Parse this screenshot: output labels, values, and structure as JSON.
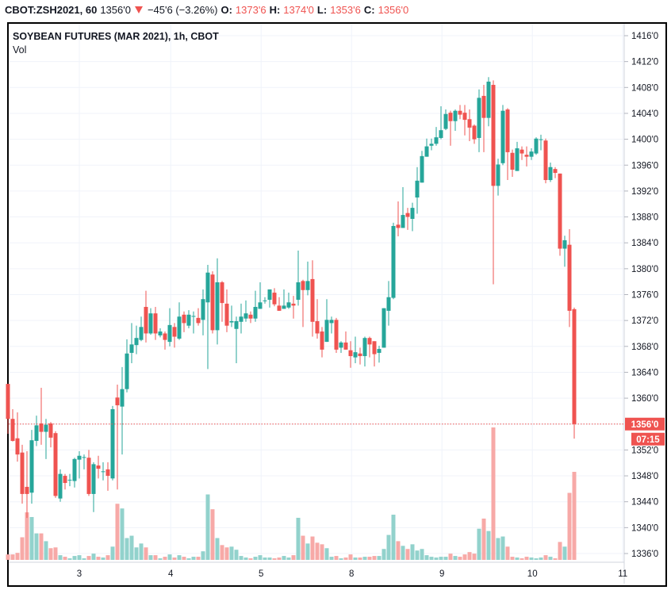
{
  "header": {
    "symbol": "CBOT:ZSH2021, 60",
    "last": "1356'0",
    "change": "−45'6 (−3.26%)",
    "open_label": "O:",
    "open": "1373'6",
    "high_label": "H:",
    "high": "1374'0",
    "low_label": "L:",
    "low": "1353'6",
    "close_label": "C:",
    "close": "1356'0",
    "direction_icon": "triangle-down-icon"
  },
  "legend": {
    "title": "SOYBEAN FUTURES (MAR 2021), 1h, CBOT",
    "volume_label": "Vol"
  },
  "price_label": "1356'0",
  "countdown": "07:15",
  "colors": {
    "up": "#26a69a",
    "down": "#ef5350",
    "up_vol": "#92d2cc",
    "down_vol": "#f7a9a7",
    "grid": "#f0f3fa"
  },
  "chart_data": {
    "type": "candlestick",
    "title": "SOYBEAN FUTURES (MAR 2021), 1h, CBOT",
    "ylim": [
      1334,
      1418
    ],
    "y_ticks": [
      "1416'0",
      "1412'0",
      "1408'0",
      "1404'0",
      "1400'0",
      "1396'0",
      "1392'0",
      "1388'0",
      "1384'0",
      "1380'0",
      "1376'0",
      "1372'0",
      "1368'0",
      "1364'0",
      "1360'0",
      "1352'0",
      "1348'0",
      "1344'0",
      "1340'0",
      "1336'0"
    ],
    "y_tick_values": [
      1416,
      1412,
      1408,
      1404,
      1400,
      1396,
      1392,
      1388,
      1384,
      1380,
      1376,
      1372,
      1368,
      1364,
      1360,
      1352,
      1348,
      1344,
      1340,
      1336
    ],
    "x_ticks": [
      {
        "label": "3",
        "bar": 15
      },
      {
        "label": "4",
        "bar": 34.2
      },
      {
        "label": "5",
        "bar": 53.2
      },
      {
        "label": "8",
        "bar": 72.2
      },
      {
        "label": "9",
        "bar": 91.2
      },
      {
        "label": "10",
        "bar": 110.2
      },
      {
        "label": "11",
        "bar": 129.2
      }
    ],
    "last_price": 1356,
    "ohlc_fields": [
      "open",
      "high",
      "low",
      "close"
    ],
    "ohlc": [
      [
        1362.2,
        1362.2,
        1354.5,
        1356.8
      ],
      [
        1356.8,
        1358.3,
        1353.3,
        1353.4
      ],
      [
        1353.8,
        1357.8,
        1350.2,
        1351.3
      ],
      [
        1351.6,
        1352.8,
        1343.7,
        1345.2
      ],
      [
        1346.3,
        1351.8,
        1341.5,
        1345.2
      ],
      [
        1345.4,
        1355.1,
        1343.7,
        1353.5
      ],
      [
        1353.4,
        1357.3,
        1352.6,
        1355.8
      ],
      [
        1356.1,
        1361.6,
        1352.8,
        1354.8
      ],
      [
        1354.8,
        1356.8,
        1350.6,
        1355.9
      ],
      [
        1356.1,
        1356.3,
        1352.4,
        1353.9
      ],
      [
        1354.6,
        1354.9,
        1344.6,
        1344.9
      ],
      [
        1344.5,
        1349.0,
        1344.0,
        1348.3
      ],
      [
        1348.0,
        1348.3,
        1345.9,
        1346.9
      ],
      [
        1347.3,
        1348.3,
        1346.4,
        1347.4
      ],
      [
        1347.2,
        1350.8,
        1346.2,
        1350.6
      ],
      [
        1350.5,
        1351.8,
        1347.6,
        1351.1
      ],
      [
        1350.8,
        1351.3,
        1349.0,
        1350.9
      ],
      [
        1350.8,
        1352.0,
        1344.9,
        1345.2
      ],
      [
        1345.2,
        1350.1,
        1342.4,
        1349.8
      ],
      [
        1349.6,
        1351.1,
        1347.6,
        1349.1
      ],
      [
        1348.6,
        1350.1,
        1347.3,
        1348.7
      ],
      [
        1349.0,
        1350.1,
        1345.7,
        1348.0
      ],
      [
        1347.6,
        1358.8,
        1347.3,
        1358.3
      ],
      [
        1360.1,
        1362.1,
        1345.9,
        1358.9
      ],
      [
        1358.7,
        1364.8,
        1351.3,
        1361.4
      ],
      [
        1361.4,
        1369.1,
        1360.9,
        1366.9
      ],
      [
        1367.0,
        1371.6,
        1365.4,
        1368.3
      ],
      [
        1368.2,
        1371.2,
        1366.8,
        1369.3
      ],
      [
        1369.0,
        1372.6,
        1368.8,
        1371.0
      ],
      [
        1374.1,
        1376.6,
        1368.6,
        1370.0
      ],
      [
        1370.0,
        1373.9,
        1369.8,
        1373.1
      ],
      [
        1373.1,
        1374.1,
        1369.0,
        1370.0
      ],
      [
        1369.7,
        1370.8,
        1369.4,
        1370.3
      ],
      [
        1370.0,
        1370.3,
        1367.5,
        1369.0
      ],
      [
        1368.7,
        1373.9,
        1368.0,
        1371.3
      ],
      [
        1371.0,
        1371.6,
        1367.8,
        1369.5
      ],
      [
        1369.2,
        1374.8,
        1369.0,
        1372.6
      ],
      [
        1372.9,
        1373.4,
        1370.2,
        1371.6
      ],
      [
        1371.2,
        1373.6,
        1370.8,
        1372.9
      ],
      [
        1372.6,
        1373.4,
        1370.0,
        1372.7
      ],
      [
        1372.4,
        1373.9,
        1371.2,
        1371.6
      ],
      [
        1372.1,
        1376.8,
        1369.7,
        1375.3
      ],
      [
        1374.8,
        1380.6,
        1364.5,
        1379.4
      ],
      [
        1379.1,
        1379.6,
        1370.0,
        1370.5
      ],
      [
        1370.5,
        1381.6,
        1368.3,
        1377.9
      ],
      [
        1377.9,
        1378.1,
        1371.8,
        1374.7
      ],
      [
        1374.6,
        1376.8,
        1370.2,
        1371.2
      ],
      [
        1371.7,
        1374.3,
        1371.0,
        1371.9
      ],
      [
        1370.7,
        1372.6,
        1365.4,
        1371.9
      ],
      [
        1371.8,
        1374.6,
        1370.0,
        1372.6
      ],
      [
        1372.3,
        1375.1,
        1371.8,
        1373.1
      ],
      [
        1372.9,
        1373.4,
        1371.6,
        1372.3
      ],
      [
        1372.3,
        1376.6,
        1371.8,
        1374.1
      ],
      [
        1373.8,
        1377.9,
        1373.8,
        1374.8
      ],
      [
        1375.0,
        1375.6,
        1374.6,
        1375.1
      ],
      [
        1375.2,
        1376.8,
        1374.0,
        1376.8
      ],
      [
        1376.3,
        1377.0,
        1374.2,
        1374.5
      ],
      [
        1374.3,
        1375.6,
        1373.5,
        1373.5
      ],
      [
        1373.8,
        1376.8,
        1373.8,
        1374.3
      ],
      [
        1374.0,
        1376.3,
        1373.8,
        1374.8
      ],
      [
        1374.6,
        1375.8,
        1372.3,
        1374.3
      ],
      [
        1375.2,
        1382.8,
        1374.3,
        1377.9
      ],
      [
        1378.1,
        1378.3,
        1371.0,
        1376.7
      ],
      [
        1376.7,
        1381.1,
        1375.9,
        1378.1
      ],
      [
        1378.4,
        1381.3,
        1369.5,
        1371.8
      ],
      [
        1371.9,
        1375.3,
        1369.2,
        1370.0
      ],
      [
        1370.3,
        1371.0,
        1366.3,
        1367.5
      ],
      [
        1368.7,
        1375.3,
        1368.7,
        1372.1
      ],
      [
        1371.6,
        1372.6,
        1370.0,
        1372.1
      ],
      [
        1372.1,
        1372.4,
        1367.0,
        1367.5
      ],
      [
        1367.8,
        1368.8,
        1367.0,
        1368.6
      ],
      [
        1368.6,
        1370.3,
        1367.5,
        1367.5
      ],
      [
        1367.4,
        1368.8,
        1364.7,
        1366.5
      ],
      [
        1366.3,
        1369.5,
        1365.4,
        1367.1
      ],
      [
        1366.9,
        1367.8,
        1365.2,
        1366.5
      ],
      [
        1366.5,
        1369.5,
        1364.9,
        1369.3
      ],
      [
        1369.3,
        1369.5,
        1366.3,
        1368.3
      ],
      [
        1368.8,
        1368.8,
        1364.9,
        1366.8
      ],
      [
        1367.0,
        1368.1,
        1365.5,
        1367.6
      ],
      [
        1367.8,
        1373.9,
        1367.8,
        1373.9
      ],
      [
        1373.5,
        1378.1,
        1371.2,
        1375.6
      ],
      [
        1375.5,
        1387.1,
        1375.3,
        1386.6
      ],
      [
        1386.8,
        1390.4,
        1385.0,
        1386.3
      ],
      [
        1386.3,
        1392.6,
        1386.3,
        1388.3
      ],
      [
        1388.6,
        1389.4,
        1386.0,
        1388.0
      ],
      [
        1387.7,
        1390.2,
        1385.8,
        1389.4
      ],
      [
        1391.0,
        1395.7,
        1388.5,
        1393.6
      ],
      [
        1393.3,
        1398.2,
        1393.3,
        1397.4
      ],
      [
        1397.3,
        1400.1,
        1397.3,
        1398.9
      ],
      [
        1399.0,
        1400.1,
        1398.3,
        1399.3
      ],
      [
        1399.3,
        1401.9,
        1399.0,
        1400.3
      ],
      [
        1400.2,
        1405.1,
        1400.0,
        1401.4
      ],
      [
        1401.6,
        1404.6,
        1401.4,
        1403.9
      ],
      [
        1404.1,
        1404.4,
        1399.0,
        1402.8
      ],
      [
        1402.8,
        1404.6,
        1401.3,
        1404.4
      ],
      [
        1404.4,
        1405.3,
        1403.1,
        1403.8
      ],
      [
        1404.1,
        1405.3,
        1400.6,
        1403.0
      ],
      [
        1403.1,
        1404.6,
        1399.7,
        1401.8
      ],
      [
        1402.1,
        1402.3,
        1399.3,
        1400.0
      ],
      [
        1400.2,
        1407.7,
        1398.0,
        1406.4
      ],
      [
        1406.7,
        1408.4,
        1398.0,
        1403.3
      ],
      [
        1403.3,
        1409.6,
        1402.0,
        1408.9
      ],
      [
        1408.4,
        1409.1,
        1377.6,
        1392.8
      ],
      [
        1392.8,
        1397.0,
        1391.3,
        1396.1
      ],
      [
        1396.3,
        1405.3,
        1396.0,
        1404.4
      ],
      [
        1404.6,
        1404.8,
        1393.7,
        1398.0
      ],
      [
        1397.9,
        1398.4,
        1394.2,
        1395.3
      ],
      [
        1395.1,
        1399.6,
        1395.1,
        1398.6
      ],
      [
        1398.4,
        1398.9,
        1396.8,
        1397.8
      ],
      [
        1397.6,
        1398.9,
        1395.8,
        1397.3
      ],
      [
        1397.3,
        1398.6,
        1396.8,
        1398.1
      ],
      [
        1397.8,
        1400.3,
        1397.6,
        1400.1
      ],
      [
        1400.0,
        1400.7,
        1398.3,
        1400.0
      ],
      [
        1399.8,
        1400.1,
        1393.2,
        1393.7
      ],
      [
        1393.7,
        1396.4,
        1393.4,
        1395.7
      ],
      [
        1395.4,
        1395.7,
        1394.0,
        1394.8
      ],
      [
        1394.7,
        1394.7,
        1382.0,
        1383.1
      ],
      [
        1383.1,
        1385.1,
        1380.3,
        1384.4
      ],
      [
        1383.7,
        1386.1,
        1371.0,
        1373.5
      ],
      [
        1373.75,
        1374.0,
        1353.75,
        1356.0
      ]
    ],
    "volume_relative": [
      7,
      7,
      9,
      29,
      61,
      55,
      34,
      34,
      24,
      15,
      16,
      6,
      4,
      2,
      5,
      6,
      2,
      5,
      8,
      4,
      3,
      6,
      17,
      72,
      66,
      28,
      31,
      16,
      21,
      16,
      6,
      6,
      2,
      4,
      7,
      3,
      6,
      4,
      2,
      4,
      4,
      11,
      84,
      65,
      28,
      19,
      16,
      17,
      13,
      5,
      3,
      2,
      4,
      6,
      3,
      3,
      2,
      3,
      5,
      3,
      6,
      54,
      31,
      21,
      30,
      22,
      20,
      15,
      4,
      5,
      2,
      3,
      7,
      3,
      3,
      4,
      4,
      5,
      5,
      14,
      32,
      58,
      24,
      18,
      14,
      20,
      12,
      14,
      6,
      4,
      3,
      4,
      4,
      8,
      5,
      4,
      7,
      10,
      8,
      40,
      53,
      37,
      170,
      28,
      30,
      17,
      4,
      3,
      2,
      4,
      3,
      2,
      3,
      6,
      4,
      2,
      23,
      17,
      86,
      113
    ]
  }
}
